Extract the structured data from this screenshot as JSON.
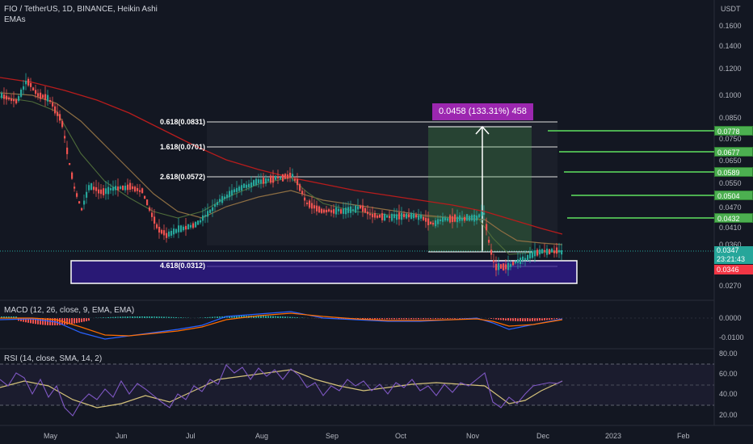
{
  "header": {
    "title": "FIO / TetherUS, 1D, BINANCE, Heikin Ashi",
    "indicator": "EMAs"
  },
  "price_axis": {
    "unit": "USDT",
    "labels": [
      "0.1600",
      "0.1400",
      "0.1200",
      "0.1000",
      "0.0850",
      "0.0750",
      "0.0650",
      "0.0550",
      "0.0470",
      "0.0410",
      "0.0360",
      "0.0270"
    ]
  },
  "level_tags": [
    "0.0778",
    "0.0677",
    "0.0589",
    "0.0504",
    "0.0432"
  ],
  "current": {
    "price": "0.0347",
    "countdown": "23:21:43",
    "ema": "0.0346"
  },
  "fib_labels": [
    "0.618(0.0831)",
    "1.618(0.0701)",
    "2.618(0.0572)",
    "4.618(0.0312)"
  ],
  "measure_label": "0.0458 (133.31%) 458",
  "macd": {
    "title": "MACD (12, 26, close, 9, EMA, EMA)",
    "labels": [
      "0.0000",
      "-0.0100"
    ]
  },
  "rsi": {
    "title": "RSI (14, close, SMA, 14, 2)",
    "labels": [
      "80.00",
      "60.00",
      "40.00",
      "20.00"
    ]
  },
  "time_axis": [
    "May",
    "Jun",
    "Jul",
    "Aug",
    "Sep",
    "Oct",
    "Nov",
    "Dec",
    "2023",
    "Feb"
  ],
  "colors": {
    "background": "#131722",
    "up": "#26a69a",
    "down": "#ef5350",
    "tag_green": "#4caf50",
    "measure_purple": "#9c27b0",
    "zone_purple": "#311b92",
    "rsi_line": "#7e57c2",
    "rsi_ma": "#d4c27a"
  }
}
